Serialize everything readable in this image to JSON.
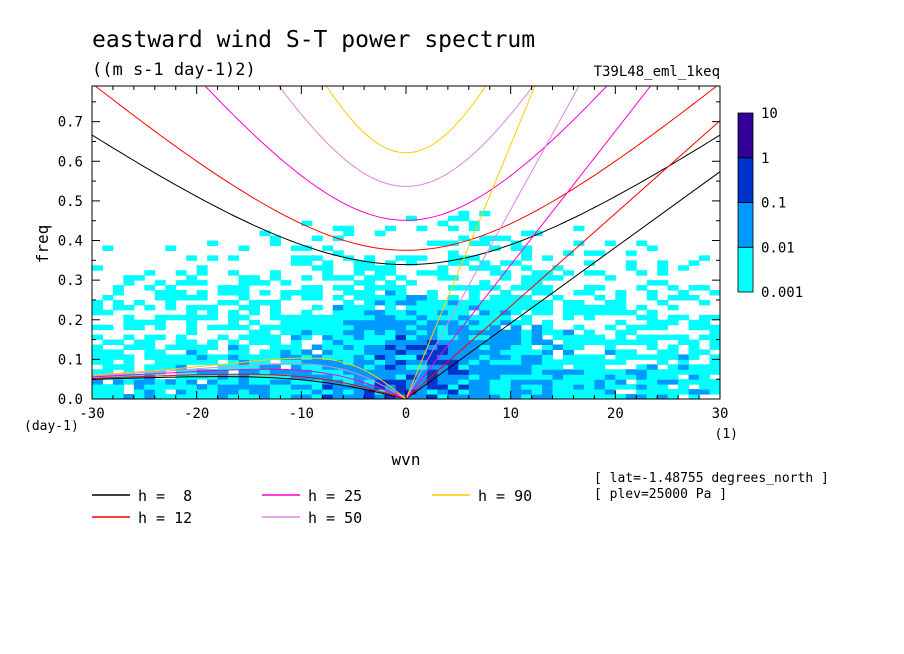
{
  "chart_data": {
    "type": "heatmap",
    "title": "eastward wind S-T power spectrum",
    "subtitle": "((m s-1 day-1)2)",
    "run_label": "T39L48_eml_1keq",
    "xlabel": "wvn",
    "ylabel": "freq",
    "x_unit": "(1)",
    "y_unit": "(day-1)",
    "xlim": [
      -30,
      30
    ],
    "ylim": [
      0,
      0.79
    ],
    "x_ticks": [
      -30,
      -20,
      -10,
      0,
      10,
      20,
      30
    ],
    "x_tick_labels": [
      "-30",
      "-20",
      "-10",
      "0",
      "10",
      "20",
      "30"
    ],
    "y_ticks": [
      0,
      0.1,
      0.2,
      0.3,
      0.4,
      0.5,
      0.6,
      0.7
    ],
    "y_tick_labels": [
      "0.0",
      "0.1",
      "0.2",
      "0.3",
      "0.4",
      "0.5",
      "0.6",
      "0.7"
    ],
    "colorbar": {
      "levels": [
        "0.001",
        "0.01",
        "0.1",
        "1",
        "10"
      ],
      "colors": [
        "#00ffff",
        "#0099ff",
        "#0033cc",
        "#330099"
      ],
      "log_scale": true
    },
    "dispersion_curves": [
      {
        "label": "h =  8",
        "h": 8,
        "color": "#000000"
      },
      {
        "label": "h = 12",
        "h": 12,
        "color": "#ff0000"
      },
      {
        "label": "h = 25",
        "h": 25,
        "color": "#ff00cc"
      },
      {
        "label": "h = 50",
        "h": 50,
        "color": "#dd88dd"
      },
      {
        "label": "h = 90",
        "h": 90,
        "color": "#ffcc00"
      }
    ],
    "annotations": [
      "[ lat=-1.48755 degrees_north ]",
      "[ plev=25000 Pa ]"
    ]
  }
}
